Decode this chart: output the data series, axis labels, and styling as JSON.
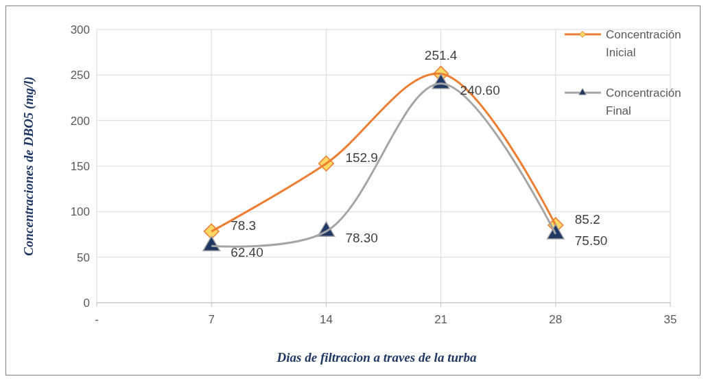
{
  "chart_data": {
    "type": "line",
    "xlabel": "Dias de filtracion a traves de la turba",
    "ylabel": "Concentraciones de DBO5 (mg/l)",
    "x": [
      7,
      14,
      21,
      28
    ],
    "xlim": [
      0,
      35
    ],
    "xticks": [
      {
        "value": 0,
        "label": "-"
      },
      7,
      14,
      21,
      28,
      35
    ],
    "ylim": [
      0,
      300
    ],
    "yticks": [
      0,
      50,
      100,
      150,
      200,
      250,
      300
    ],
    "grid": true,
    "legend": "right",
    "series": [
      {
        "name": "Concentración Inicial",
        "color": "#ed7d31",
        "marker": "diamond",
        "values": [
          78.3,
          152.9,
          251.4,
          85.2
        ],
        "value_labels": [
          "78.3",
          "152.9",
          "251.4",
          "85.2"
        ]
      },
      {
        "name": "Concentración Final",
        "color": "#a5a5a5",
        "marker": "triangle",
        "values": [
          62.4,
          78.3,
          240.6,
          75.5
        ],
        "value_labels": [
          "62.40",
          "78.30",
          "240.60",
          "75.50"
        ]
      }
    ]
  }
}
